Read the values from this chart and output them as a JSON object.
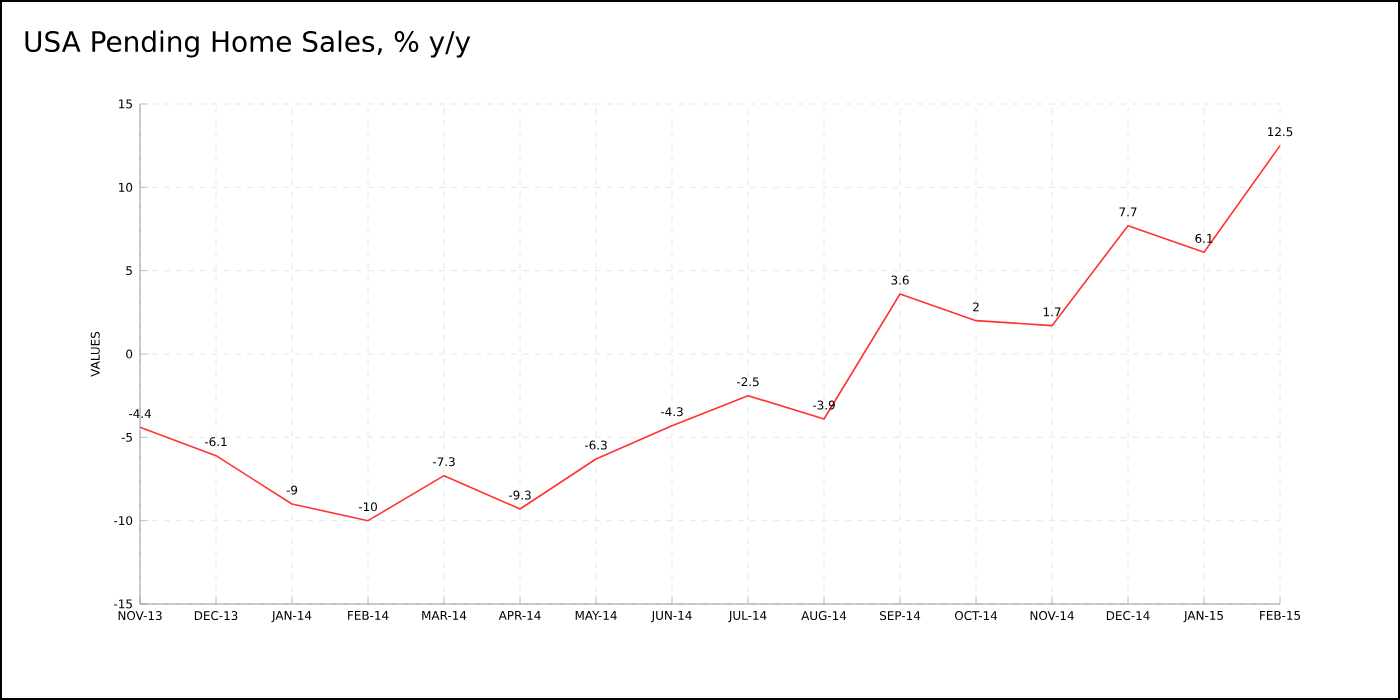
{
  "chart_data": {
    "type": "line",
    "title": "USA Pending Home Sales, % y/y",
    "ylabel": "VALUES",
    "categories": [
      "NOV-13",
      "DEC-13",
      "JAN-14",
      "FEB-14",
      "MAR-14",
      "APR-14",
      "MAY-14",
      "JUN-14",
      "JUL-14",
      "AUG-14",
      "SEP-14",
      "OCT-14",
      "NOV-14",
      "DEC-14",
      "JAN-15",
      "FEB-15"
    ],
    "series": [
      {
        "color": "#ff3333",
        "values": [
          -4.4,
          -6.1,
          -9,
          -10,
          -7.3,
          -9.3,
          -6.3,
          -4.3,
          -2.5,
          -3.9,
          3.6,
          2,
          1.7,
          7.7,
          6.1,
          12.5
        ]
      }
    ],
    "ylim": [
      -15,
      15
    ],
    "yticks": [
      -15,
      -10,
      -5,
      0,
      5,
      10,
      15
    ],
    "grid": true,
    "data_labels": true,
    "marker": "none",
    "line_style": "solid"
  }
}
